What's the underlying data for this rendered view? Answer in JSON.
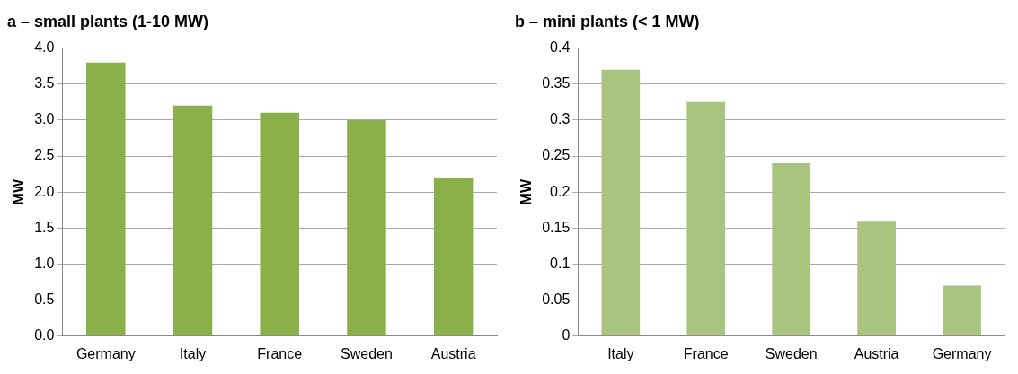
{
  "chart_data": [
    {
      "type": "bar",
      "title": "a – small plants (1-10 MW)",
      "ylabel": "MW",
      "categories": [
        "Germany",
        "Italy",
        "France",
        "Sweden",
        "Austria"
      ],
      "values": [
        3.8,
        3.2,
        3.1,
        3.0,
        2.2
      ],
      "color": "#8ab04a",
      "ylim": [
        0,
        4
      ],
      "yticks": [
        {
          "value": 0,
          "label": "0.0"
        },
        {
          "value": 0.5,
          "label": "0.5"
        },
        {
          "value": 1,
          "label": "1.0"
        },
        {
          "value": 1.5,
          "label": "1.5"
        },
        {
          "value": 2,
          "label": "2.0"
        },
        {
          "value": 2.5,
          "label": "2.5"
        },
        {
          "value": 3,
          "label": "3.0"
        },
        {
          "value": 3.5,
          "label": "3.5"
        },
        {
          "value": 4,
          "label": "4.0"
        }
      ],
      "grid": "y"
    },
    {
      "type": "bar",
      "title": "b – mini plants (< 1 MW)",
      "ylabel": "MW",
      "categories": [
        "Italy",
        "France",
        "Sweden",
        "Austria",
        "Germany"
      ],
      "values": [
        0.37,
        0.325,
        0.24,
        0.16,
        0.07
      ],
      "color": "#a9c47f",
      "ylim": [
        0,
        0.4
      ],
      "yticks": [
        0,
        0.05,
        0.1,
        0.15,
        0.2,
        0.25,
        0.3,
        0.35,
        0.4
      ],
      "grid": "y"
    }
  ]
}
